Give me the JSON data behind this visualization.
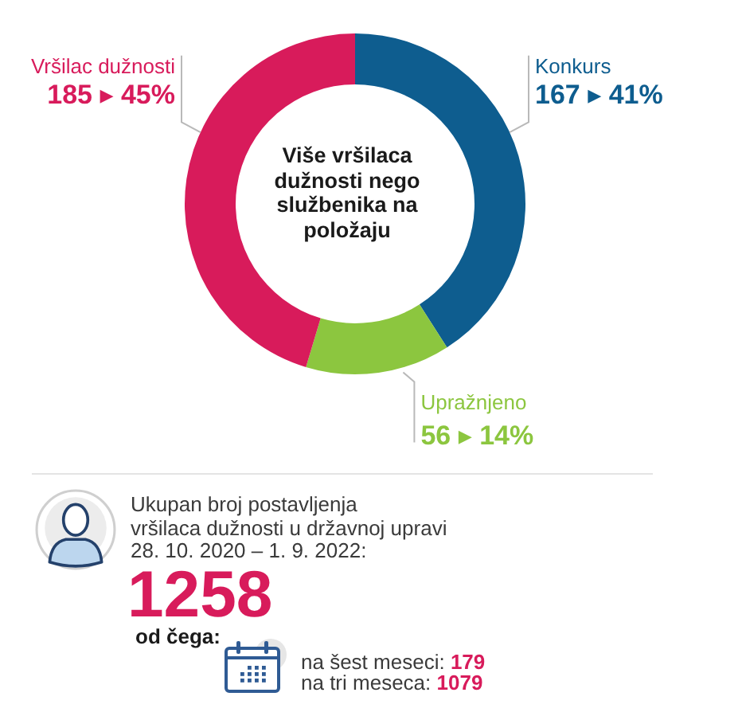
{
  "chart_data": {
    "type": "donut",
    "title": "Više vršilaca dužnosti nego službenika na položaju",
    "categories": [
      "Konkurs",
      "Upražnjeno",
      "Vršilac dužnosti"
    ],
    "values": [
      167,
      56,
      185
    ],
    "colors": [
      "#0e5d8f",
      "#8cc63f",
      "#d81b5b"
    ],
    "value_labels": [
      "167 ▸ 41%",
      "56 ▸ 14%",
      "185 ▸ 45%"
    ],
    "annotations": [
      "Ukupan broj postavljenja",
      "vršilaca dužnosti u državnoj upravi",
      "28. 10. 2020 – 1. 9. 2022:",
      "1258",
      "od čega:",
      "na šest meseci: 179",
      "na tri meseca: 1079"
    ]
  }
}
